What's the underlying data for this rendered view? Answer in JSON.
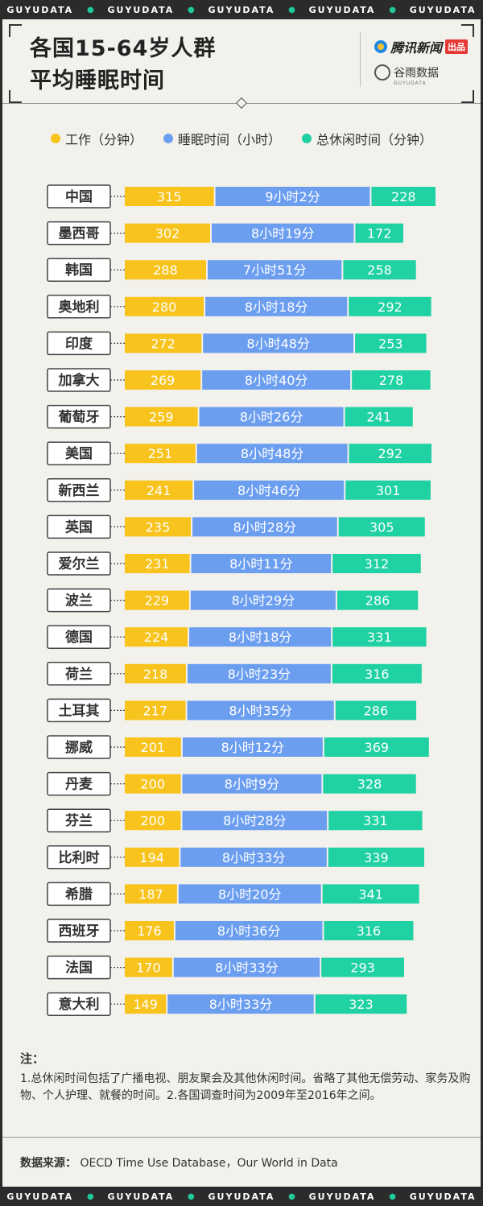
{
  "strip_text": "GUYUDATA",
  "header": {
    "title_line1": "各国15-64岁人群",
    "title_line2": "平均睡眠时间",
    "brand1": "腾讯新闻",
    "brand1_badge": "出品",
    "brand2": "谷雨数据",
    "brand2_sub": "GUYUDATA"
  },
  "colors": {
    "work": "#f7c31c",
    "sleep": "#6c9ef0",
    "leisure": "#1fd1a3"
  },
  "chart_data": {
    "type": "bar",
    "stacked": true,
    "orientation": "horizontal",
    "title": "各国15-64岁人群平均睡眠时间",
    "legend": [
      "工作（分钟）",
      "睡眠时间（小时）",
      "总休闲时间（分钟）"
    ],
    "legend_position": "top",
    "categories": [
      "中国",
      "墨西哥",
      "韩国",
      "奥地利",
      "印度",
      "加拿大",
      "葡萄牙",
      "美国",
      "新西兰",
      "英国",
      "爱尔兰",
      "波兰",
      "德国",
      "荷兰",
      "土耳其",
      "挪威",
      "丹麦",
      "芬兰",
      "比利时",
      "希腊",
      "西班牙",
      "法国",
      "意大利"
    ],
    "series": [
      {
        "name": "工作（分钟）",
        "values": [
          315,
          302,
          288,
          280,
          272,
          269,
          259,
          251,
          241,
          235,
          231,
          229,
          224,
          218,
          217,
          201,
          200,
          200,
          194,
          187,
          176,
          170,
          149
        ]
      },
      {
        "name": "睡眠时间（小时）",
        "values": [
          542,
          499,
          471,
          498,
          528,
          520,
          506,
          528,
          526,
          508,
          491,
          509,
          498,
          503,
          515,
          492,
          489,
          508,
          513,
          500,
          516,
          513,
          513
        ],
        "labels": [
          "9小时2分",
          "8小时19分",
          "7小时51分",
          "8小时18分",
          "8小时48分",
          "8小时40分",
          "8小时26分",
          "8小时48分",
          "8小时46分",
          "8小时28分",
          "8小时11分",
          "8小时29分",
          "8小时18分",
          "8小时23分",
          "8小时35分",
          "8小时12分",
          "8小时9分",
          "8小时28分",
          "8小时33分",
          "8小时20分",
          "8小时36分",
          "8小时33分",
          "8小时33分"
        ]
      },
      {
        "name": "总休闲时间（分钟）",
        "values": [
          228,
          172,
          258,
          292,
          253,
          278,
          241,
          292,
          301,
          305,
          312,
          286,
          331,
          316,
          286,
          369,
          328,
          331,
          339,
          341,
          316,
          293,
          323
        ]
      }
    ]
  },
  "notes": {
    "title": "注：",
    "body": "1.总休闲时间包括了广播电视、朋友聚会及其他休闲时间。省略了其他无偿劳动、家务及购物、个人护理、就餐的时间。2.各国调查时间为2009年至2016年之间。"
  },
  "source": {
    "label": "数据来源：",
    "text": "OECD Time Use Database，Our World in Data"
  }
}
